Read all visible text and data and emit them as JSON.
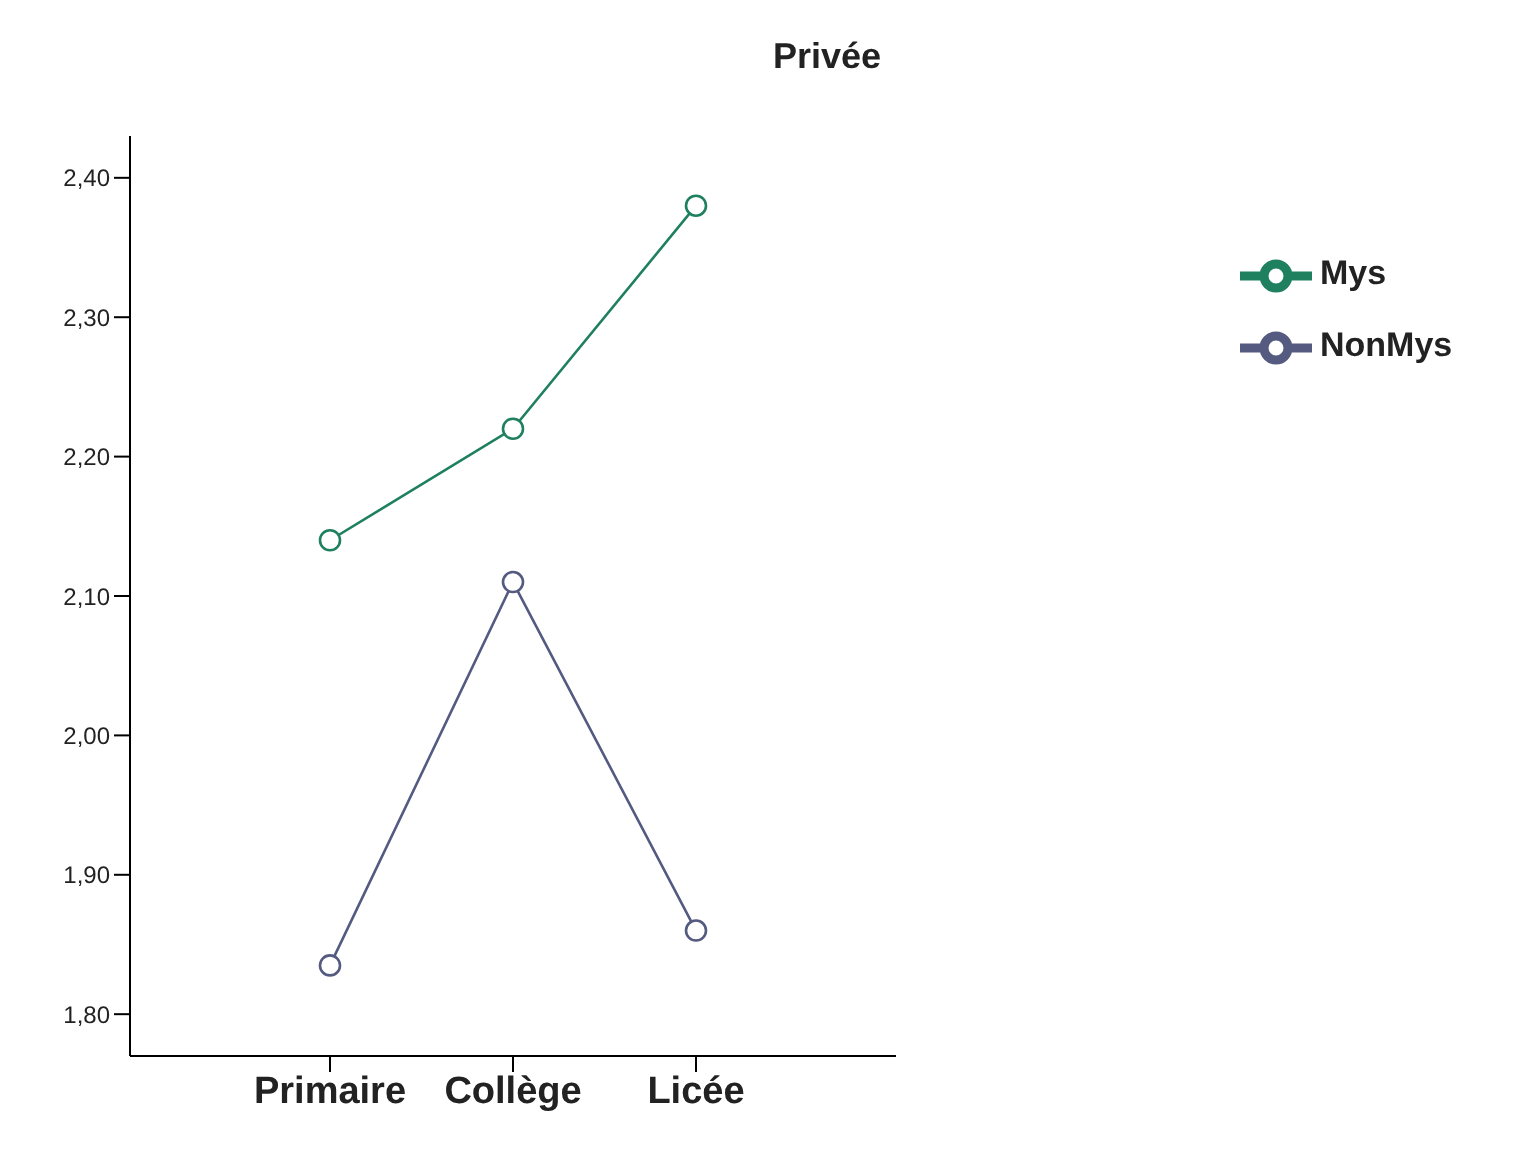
{
  "chart_data": {
    "type": "line",
    "title": "Privée",
    "categories": [
      "Primaire",
      "Collège",
      "Licée"
    ],
    "series": [
      {
        "name": "NonMys",
        "color": "#545a80",
        "values": [
          1.835,
          2.11,
          1.86
        ]
      },
      {
        "name": "Mys",
        "color": "#1f8060",
        "values": [
          2.14,
          2.22,
          2.38
        ]
      }
    ],
    "ylim": [
      1.77,
      2.43
    ],
    "yticks": [
      {
        "value": 1.8,
        "label": "1,80"
      },
      {
        "value": 1.9,
        "label": "1,90"
      },
      {
        "value": 2.0,
        "label": "2,00"
      },
      {
        "value": 2.1,
        "label": "2,10"
      },
      {
        "value": 2.2,
        "label": "2,20"
      },
      {
        "value": 2.3,
        "label": "2,30"
      },
      {
        "value": 2.4,
        "label": "2,40"
      }
    ],
    "grid": false,
    "legend": "right",
    "marker": "circle",
    "line_style": "solid"
  }
}
